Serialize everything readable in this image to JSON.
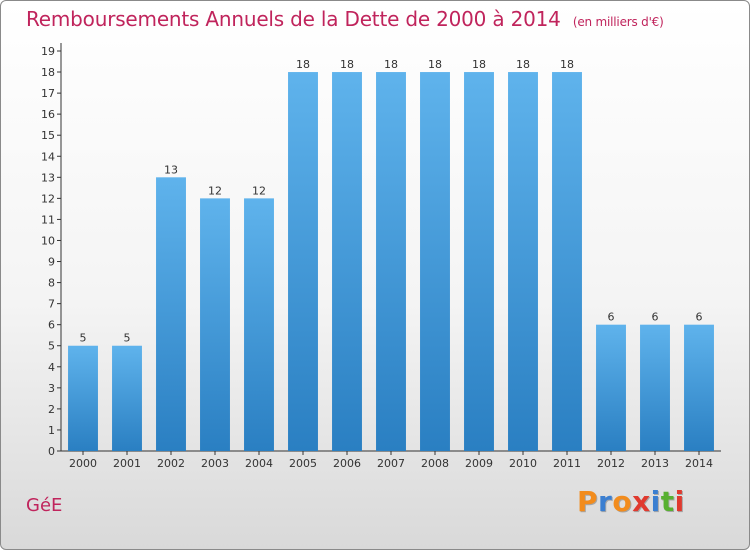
{
  "header": {
    "title": "Remboursements Annuels de la Dette de 2000 à 2014",
    "unit": "(en milliers d'€)"
  },
  "footer": {
    "commune": "GéE",
    "logo_letters": [
      "P",
      "r",
      "o",
      "x",
      "i",
      "t",
      "i"
    ],
    "logo_colors": [
      "#f28c1d",
      "#3b7fd1",
      "#f28c1d",
      "#e03a2f",
      "#3b7fd1",
      "#58b030",
      "#e03a2f"
    ]
  },
  "chart_data": {
    "type": "bar",
    "title": "Remboursements Annuels de la Dette de 2000 à 2014",
    "categories": [
      "2000",
      "2001",
      "2002",
      "2003",
      "2004",
      "2005",
      "2006",
      "2007",
      "2008",
      "2009",
      "2010",
      "2011",
      "2012",
      "2013",
      "2014"
    ],
    "values": [
      5,
      5,
      13,
      12,
      12,
      18,
      18,
      18,
      18,
      18,
      18,
      18,
      6,
      6,
      6
    ],
    "data_labels": [
      "5",
      "5",
      "13",
      "12",
      "12",
      "18",
      "18",
      "18",
      "18",
      "18",
      "18",
      "18",
      "6",
      "6",
      "6"
    ],
    "y_ticks": [
      "0",
      "1",
      "2",
      "3",
      "4",
      "5",
      "6",
      "7",
      "8",
      "9",
      "10",
      "11",
      "12",
      "13",
      "14",
      "15",
      "16",
      "17",
      "18",
      "19"
    ],
    "ylim": [
      0,
      19
    ],
    "grid": false,
    "bar_color": "#3d97d9",
    "bar_color_light": "#5fb3ec",
    "bar_color_dark": "#2a7fc2"
  }
}
